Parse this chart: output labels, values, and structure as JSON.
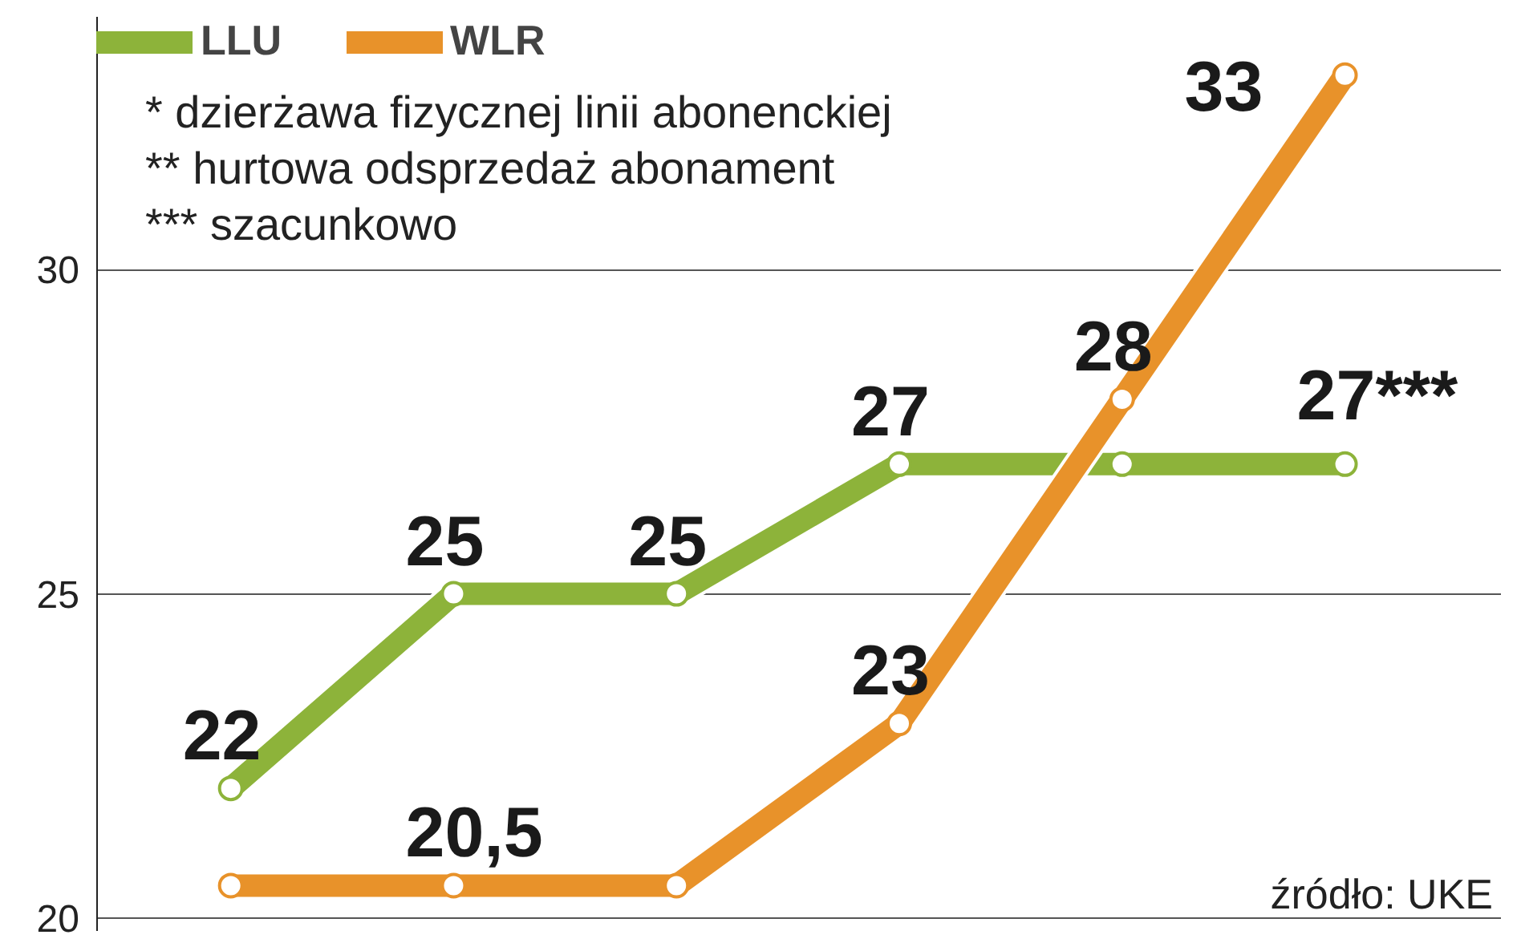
{
  "chart_data": {
    "type": "line",
    "categories": [
      null,
      null,
      null,
      null,
      null,
      null
    ],
    "series": [
      {
        "name": "LLU",
        "color": "#8db33a",
        "values": [
          22,
          25,
          25,
          27,
          27,
          27
        ],
        "value_labels": [
          "22",
          "25",
          "25",
          "27",
          null,
          "27***"
        ]
      },
      {
        "name": "WLR",
        "color": "#e8922a",
        "values": [
          20.5,
          20.5,
          20.5,
          23,
          28,
          33
        ],
        "value_labels": [
          null,
          "20,5",
          null,
          "23",
          "28",
          "33"
        ]
      }
    ],
    "ylim": [
      19.8,
      33.9
    ],
    "yticks": [
      20,
      25,
      30
    ],
    "grid": "y",
    "legend": "top left",
    "marker": "circle",
    "line_style": "solid",
    "tick_labels": "y",
    "annotations": [
      "* dzierżawa fizycznej linii abonenckiej",
      "** hurtowa odsprzedaż abonament",
      "*** szacunkowo",
      "źródło: UKE"
    ]
  }
}
